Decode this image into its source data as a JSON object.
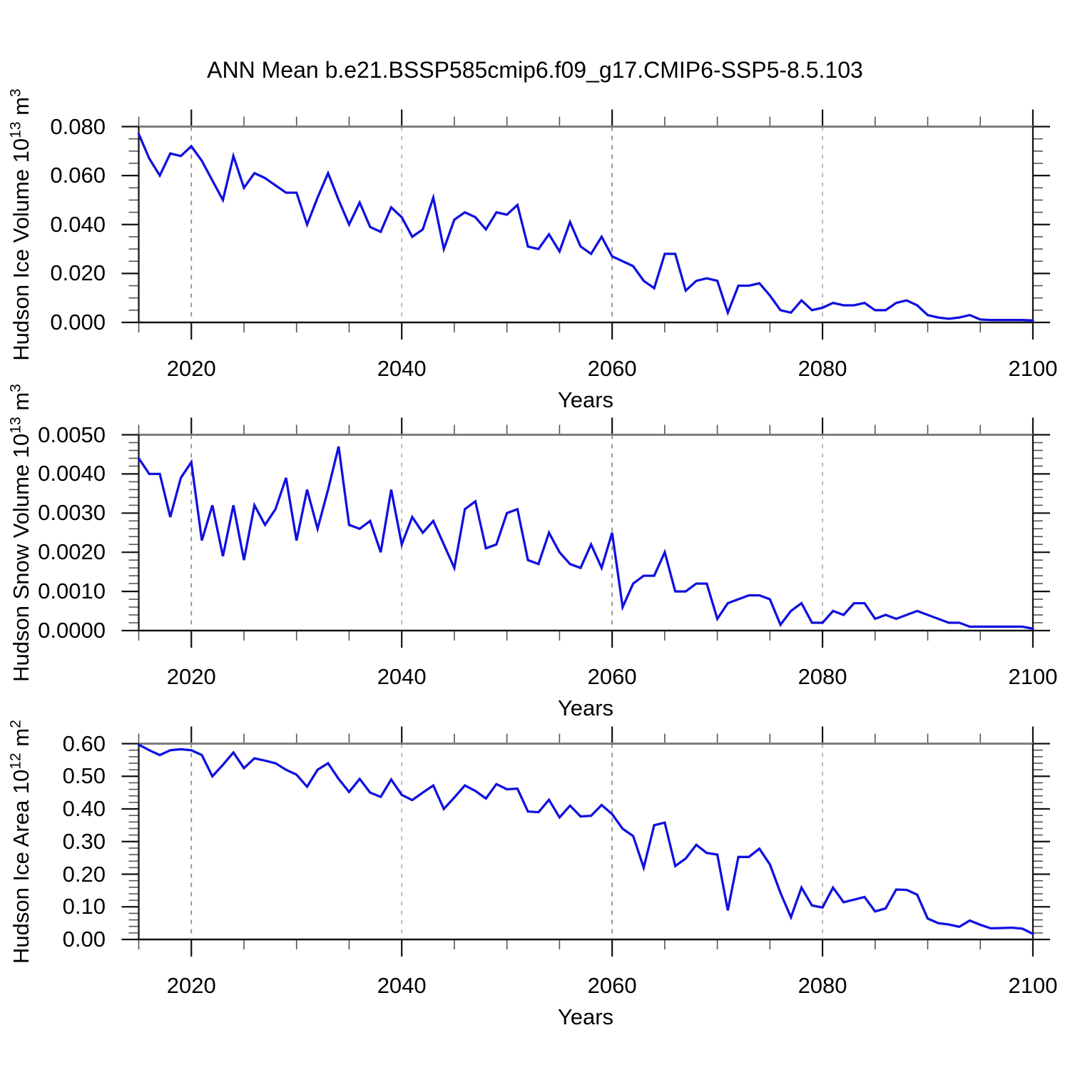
{
  "page": {
    "title": "ANN Mean b.e21.BSSP585cmip6.f09_g17.CMIP6-SSP5-8.5.103"
  },
  "style": {
    "line_color": "#1010e0",
    "grid_dark": "#8c8c8c",
    "grid_light": "#b4b4b4",
    "frame": "#111111",
    "frame_top": "#7d7d7d",
    "tick_major": "#111111",
    "tick_minor": "#555555"
  },
  "chart_data": [
    {
      "type": "line",
      "title": "ANN Mean b.e21.BSSP585cmip6.f09_g17.CMIP6-SSP5-8.5.103",
      "ylabel": {
        "prefix": "Hudson Ice Volume 10",
        "exponent": "13",
        "unit": " m",
        "unit_exponent": "3"
      },
      "xlabel": "Years",
      "x_start": 2015,
      "x_end": 2100,
      "ylim": [
        0,
        0.08
      ],
      "y_major_step": 0.02,
      "y_minor_step": 0.005,
      "x_major_step": 20,
      "x_minor_step": 5,
      "y_tick_labels": [
        "0.000",
        "0.020",
        "0.040",
        "0.060",
        "0.080"
      ],
      "x_tick_labels": [
        "2020",
        "2040",
        "2060",
        "2080",
        "2100"
      ],
      "grid_years": [
        2020,
        2040,
        2060,
        2080
      ],
      "legend": "none",
      "grid": "vertical-dashed",
      "values": [
        0.077,
        0.067,
        0.06,
        0.069,
        0.068,
        0.072,
        0.066,
        0.058,
        0.05,
        0.068,
        0.055,
        0.061,
        0.059,
        0.056,
        0.053,
        0.053,
        0.04,
        0.051,
        0.061,
        0.05,
        0.04,
        0.049,
        0.039,
        0.037,
        0.047,
        0.043,
        0.035,
        0.038,
        0.051,
        0.03,
        0.042,
        0.045,
        0.043,
        0.038,
        0.045,
        0.044,
        0.048,
        0.031,
        0.03,
        0.036,
        0.029,
        0.041,
        0.031,
        0.028,
        0.035,
        0.027,
        0.025,
        0.023,
        0.017,
        0.014,
        0.028,
        0.028,
        0.013,
        0.017,
        0.018,
        0.017,
        0.004,
        0.015,
        0.015,
        0.016,
        0.011,
        0.005,
        0.004,
        0.009,
        0.005,
        0.006,
        0.008,
        0.007,
        0.007,
        0.008,
        0.005,
        0.005,
        0.008,
        0.009,
        0.007,
        0.003,
        0.002,
        0.0015,
        0.002,
        0.003,
        0.0012,
        0.001,
        0.001,
        0.001,
        0.001,
        0.0008
      ]
    },
    {
      "type": "line",
      "ylabel": {
        "prefix": "Hudson Snow Volume 10",
        "exponent": "13",
        "unit": " m",
        "unit_exponent": "3"
      },
      "xlabel": "Years",
      "x_start": 2015,
      "x_end": 2100,
      "ylim": [
        0,
        0.005
      ],
      "y_major_step": 0.001,
      "y_minor_step": 0.0002,
      "x_major_step": 20,
      "x_minor_step": 5,
      "y_tick_labels": [
        "0.0000",
        "0.0010",
        "0.0020",
        "0.0030",
        "0.0040",
        "0.0050"
      ],
      "x_tick_labels": [
        "2020",
        "2040",
        "2060",
        "2080",
        "2100"
      ],
      "grid_years": [
        2020,
        2040,
        2060,
        2080
      ],
      "legend": "none",
      "grid": "vertical-dashed",
      "values": [
        0.0044,
        0.004,
        0.004,
        0.0029,
        0.0039,
        0.0043,
        0.0023,
        0.0032,
        0.0019,
        0.0032,
        0.0018,
        0.0032,
        0.0027,
        0.0031,
        0.0039,
        0.0023,
        0.0036,
        0.0026,
        0.0036,
        0.0047,
        0.0027,
        0.0026,
        0.0028,
        0.002,
        0.0036,
        0.0022,
        0.0029,
        0.0025,
        0.0028,
        0.0022,
        0.0016,
        0.0031,
        0.0033,
        0.0021,
        0.0022,
        0.003,
        0.0031,
        0.0018,
        0.0017,
        0.0025,
        0.002,
        0.0017,
        0.0016,
        0.0022,
        0.0016,
        0.0025,
        0.0006,
        0.0012,
        0.0014,
        0.0014,
        0.002,
        0.001,
        0.001,
        0.0012,
        0.0012,
        0.0003,
        0.0007,
        0.0008,
        0.0009,
        0.0009,
        0.0008,
        0.00015,
        0.0005,
        0.0007,
        0.0002,
        0.0002,
        0.0005,
        0.0004,
        0.0007,
        0.0007,
        0.0003,
        0.0004,
        0.0003,
        0.0004,
        0.0005,
        0.0004,
        0.0003,
        0.0002,
        0.0002,
        0.0001,
        0.0001,
        0.0001,
        0.0001,
        0.0001,
        0.0001,
        5e-05
      ]
    },
    {
      "type": "line",
      "ylabel": {
        "prefix": "Hudson Ice Area 10",
        "exponent": "12",
        "unit": " m",
        "unit_exponent": "2"
      },
      "xlabel": "Years",
      "x_start": 2015,
      "x_end": 2100,
      "ylim": [
        0,
        0.6
      ],
      "y_major_step": 0.1,
      "y_minor_step": 0.02,
      "x_major_step": 20,
      "x_minor_step": 5,
      "y_tick_labels": [
        "0.00",
        "0.10",
        "0.20",
        "0.30",
        "0.40",
        "0.50",
        "0.60"
      ],
      "x_tick_labels": [
        "2020",
        "2040",
        "2060",
        "2080",
        "2100"
      ],
      "grid_years": [
        2020,
        2040,
        2060,
        2080
      ],
      "legend": "none",
      "grid": "vertical-dashed",
      "values": [
        0.597,
        0.58,
        0.565,
        0.58,
        0.583,
        0.58,
        0.565,
        0.5,
        0.535,
        0.573,
        0.525,
        0.555,
        0.548,
        0.54,
        0.52,
        0.505,
        0.468,
        0.52,
        0.54,
        0.492,
        0.452,
        0.492,
        0.45,
        0.437,
        0.49,
        0.443,
        0.427,
        0.45,
        0.472,
        0.4,
        0.435,
        0.472,
        0.455,
        0.432,
        0.476,
        0.46,
        0.462,
        0.392,
        0.39,
        0.428,
        0.374,
        0.41,
        0.377,
        0.379,
        0.412,
        0.384,
        0.339,
        0.317,
        0.22,
        0.35,
        0.358,
        0.225,
        0.248,
        0.29,
        0.265,
        0.26,
        0.089,
        0.253,
        0.253,
        0.278,
        0.23,
        0.143,
        0.068,
        0.159,
        0.104,
        0.098,
        0.159,
        0.114,
        0.122,
        0.13,
        0.086,
        0.095,
        0.153,
        0.152,
        0.137,
        0.064,
        0.05,
        0.046,
        0.039,
        0.058,
        0.045,
        0.034,
        0.035,
        0.036,
        0.033,
        0.017
      ]
    }
  ]
}
